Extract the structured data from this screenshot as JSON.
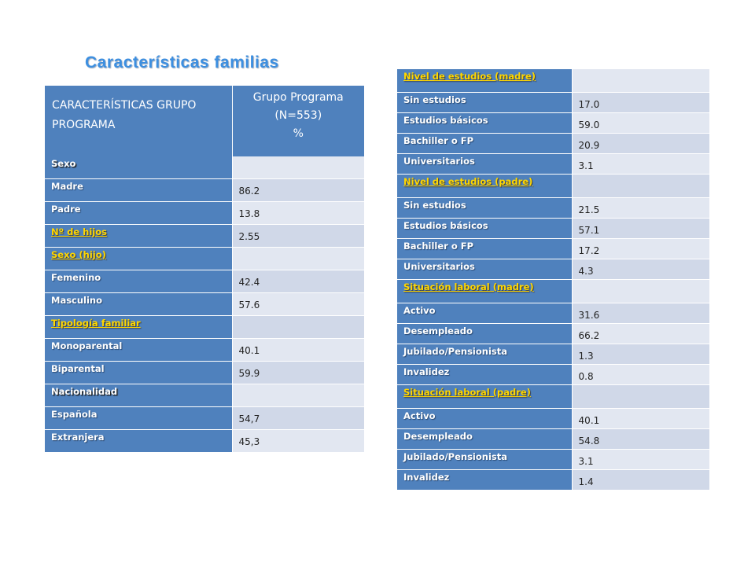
{
  "title": "Características familias",
  "left_table": {
    "header_label": "CARACTERÍSTICAS GRUPO PROGRAMA",
    "header_value_lines": [
      "Grupo Programa",
      "(N=553)",
      "%"
    ],
    "rows": [
      {
        "label": "Sexo",
        "value": "",
        "kind": "section-dark"
      },
      {
        "label": "Madre",
        "value": "86.2",
        "kind": "row"
      },
      {
        "label": "Padre",
        "value": "13.8",
        "kind": "row"
      },
      {
        "label": "Nº de hijos",
        "value": "2.55",
        "kind": "section-yellow-value"
      },
      {
        "label": "Sexo (hijo)",
        "value": "",
        "kind": "section-yellow"
      },
      {
        "label": "Femenino",
        "value": "42.4",
        "kind": "row"
      },
      {
        "label": "Masculino",
        "value": "57.6",
        "kind": "row"
      },
      {
        "label": "Tipología familiar",
        "value": "",
        "kind": "section-yellow"
      },
      {
        "label": "Monoparental",
        "value": "40.1",
        "kind": "row"
      },
      {
        "label": "Biparental",
        "value": "59.9",
        "kind": "row"
      },
      {
        "label": "Nacionalidad",
        "value": "",
        "kind": "section-dark"
      },
      {
        "label": "Española",
        "value": "54,7",
        "kind": "row"
      },
      {
        "label": "Extranjera",
        "value": "45,3",
        "kind": "row"
      }
    ]
  },
  "right_table": {
    "rows": [
      {
        "label": "Nivel de estudios (madre)",
        "value": "",
        "kind": "section-yellow"
      },
      {
        "label": "Sin estudios",
        "value": "17.0",
        "kind": "row"
      },
      {
        "label": "Estudios básicos",
        "value": "59.0",
        "kind": "row"
      },
      {
        "label": "Bachiller o FP",
        "value": "20.9",
        "kind": "row"
      },
      {
        "label": "Universitarios",
        "value": "3.1",
        "kind": "row"
      },
      {
        "label": "Nivel de estudios (padre)",
        "value": "",
        "kind": "section-yellow"
      },
      {
        "label": "Sin estudios",
        "value": "21.5",
        "kind": "row"
      },
      {
        "label": "Estudios básicos",
        "value": "57.1",
        "kind": "row"
      },
      {
        "label": "Bachiller o FP",
        "value": "17.2",
        "kind": "row"
      },
      {
        "label": "Universitarios",
        "value": "4.3",
        "kind": "row"
      },
      {
        "label": "Situación laboral (madre)",
        "value": "",
        "kind": "section-yellow"
      },
      {
        "label": "Activo",
        "value": "31.6",
        "kind": "row"
      },
      {
        "label": "Desempleado",
        "value": "66.2",
        "kind": "row"
      },
      {
        "label": "Jubilado/Pensionista",
        "value": "1.3",
        "kind": "row"
      },
      {
        "label": "Invalidez",
        "value": "0.8",
        "kind": "row"
      },
      {
        "label": "Situación laboral (padre)",
        "value": "",
        "kind": "section-yellow"
      },
      {
        "label": "Activo",
        "value": "40.1",
        "kind": "row"
      },
      {
        "label": "Desempleado",
        "value": "54.8",
        "kind": "row"
      },
      {
        "label": "Jubilado/Pensionista",
        "value": "3.1",
        "kind": "row"
      },
      {
        "label": "Invalidez",
        "value": "1.4",
        "kind": "row"
      }
    ]
  },
  "colors": {
    "title": "#3d8fe0",
    "label_bg": "#4f81bd",
    "row_light": "#e2e7f1",
    "row_dark": "#d0d8e8",
    "section_text": "#ffd700"
  }
}
